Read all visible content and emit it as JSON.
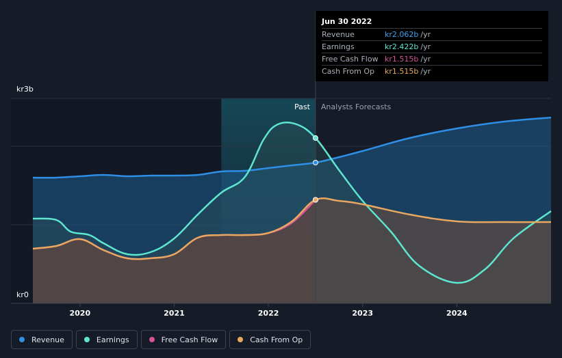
{
  "tooltip": {
    "date": "Jun 30 2022",
    "rows": [
      {
        "label": "Revenue",
        "value": "kr2.062b",
        "unit": "/yr",
        "color": "#3fa0ef"
      },
      {
        "label": "Earnings",
        "value": "kr2.422b",
        "unit": "/yr",
        "color": "#5ee6d0"
      },
      {
        "label": "Free Cash Flow",
        "value": "kr1.515b",
        "unit": "/yr",
        "color": "#d6539a"
      },
      {
        "label": "Cash From Op",
        "value": "kr1.515b",
        "unit": "/yr",
        "color": "#e8a85f"
      }
    ]
  },
  "past_label": "Past",
  "forecast_label": "Analysts Forecasts",
  "legend": [
    {
      "label": "Revenue",
      "color": "#2f8fe6"
    },
    {
      "label": "Earnings",
      "color": "#5ee6d0"
    },
    {
      "label": "Free Cash Flow",
      "color": "#d6539a"
    },
    {
      "label": "Cash From Op",
      "color": "#e8a85f"
    }
  ],
  "chart_data": {
    "type": "area",
    "ytick_labels": {
      "top": "kr3b",
      "bottom": "kr0"
    },
    "ylim": [
      0,
      3
    ],
    "xlim": [
      2019.5,
      2025.0
    ],
    "xtick_labels": [
      "2020",
      "2021",
      "2022",
      "2023",
      "2024"
    ],
    "xticks": [
      2020,
      2021,
      2022,
      2023,
      2024
    ],
    "past_end": 2022.5,
    "highlight_start": 2021.5,
    "gridlines": [
      0,
      1.15,
      2.3,
      3.0
    ],
    "series": [
      {
        "name": "Revenue",
        "color": "#2f8fe6",
        "x": [
          2019.5,
          2019.75,
          2020.0,
          2020.25,
          2020.5,
          2020.75,
          2021.0,
          2021.25,
          2021.5,
          2021.75,
          2022.0,
          2022.25,
          2022.5,
          2022.75,
          2023.0,
          2023.5,
          2024.0,
          2024.5,
          2025.0
        ],
        "y": [
          1.84,
          1.84,
          1.86,
          1.88,
          1.86,
          1.87,
          1.87,
          1.88,
          1.93,
          1.94,
          1.98,
          2.02,
          2.06,
          2.14,
          2.23,
          2.42,
          2.56,
          2.66,
          2.72
        ],
        "marker": [
          2022.5,
          2.06
        ]
      },
      {
        "name": "Earnings",
        "color": "#5ee6d0",
        "x": [
          2019.5,
          2019.75,
          2019.9,
          2020.1,
          2020.25,
          2020.5,
          2020.75,
          2021.0,
          2021.25,
          2021.5,
          2021.75,
          2021.95,
          2022.1,
          2022.3,
          2022.5,
          2022.75,
          2023.0,
          2023.3,
          2023.6,
          2024.0,
          2024.3,
          2024.6,
          2025.0
        ],
        "y": [
          1.24,
          1.22,
          1.05,
          1.0,
          0.88,
          0.72,
          0.75,
          0.95,
          1.3,
          1.62,
          1.85,
          2.4,
          2.62,
          2.62,
          2.42,
          1.95,
          1.5,
          1.05,
          0.55,
          0.3,
          0.5,
          0.95,
          1.35
        ],
        "marker": [
          2022.5,
          2.42
        ]
      },
      {
        "name": "Free Cash Flow",
        "color": "#d6539a",
        "x": [
          2019.5,
          2019.75,
          2020.0,
          2020.25,
          2020.5,
          2020.75,
          2021.0,
          2021.25,
          2021.5,
          2021.75,
          2022.0,
          2022.25,
          2022.5
        ],
        "y": [
          0.8,
          0.84,
          0.94,
          0.78,
          0.66,
          0.66,
          0.72,
          0.96,
          1.0,
          1.0,
          1.03,
          1.18,
          1.515
        ],
        "marker": [
          2022.5,
          1.515
        ]
      },
      {
        "name": "Cash From Op",
        "color": "#e8a85f",
        "x": [
          2019.5,
          2019.75,
          2020.0,
          2020.25,
          2020.5,
          2020.75,
          2021.0,
          2021.25,
          2021.5,
          2021.75,
          2022.0,
          2022.25,
          2022.5,
          2022.75,
          2023.0,
          2023.5,
          2024.0,
          2024.5,
          2025.0
        ],
        "y": [
          0.8,
          0.84,
          0.94,
          0.78,
          0.66,
          0.66,
          0.72,
          0.96,
          1.0,
          1.0,
          1.03,
          1.2,
          1.515,
          1.5,
          1.45,
          1.3,
          1.2,
          1.19,
          1.19
        ],
        "marker": [
          2022.5,
          1.515
        ]
      }
    ]
  }
}
